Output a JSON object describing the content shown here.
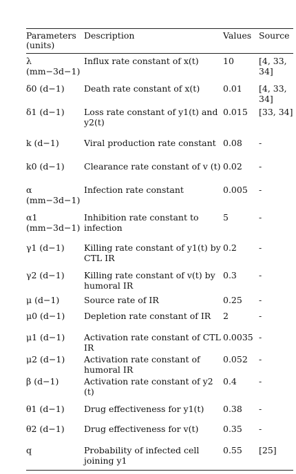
{
  "table": {
    "headers": {
      "param": "Parameters (units)",
      "desc": "Description",
      "values": "Values",
      "source": "Source"
    },
    "rows": [
      {
        "param": "λ (mm−3d−1)",
        "desc": "Influx rate constant of x(t)",
        "value": "10",
        "source": "[4, 33, 34]"
      },
      {
        "param": "δ0 (d−1)",
        "desc": "Death rate constant of x(t)",
        "value": "0.01",
        "source": "[4, 33, 34]"
      },
      {
        "param": "δ1 (d−1)",
        "desc": "Loss rate constant of y1(t) and y2(t)",
        "value": "0.015",
        "source": "[33, 34]"
      },
      {
        "param": "k (d−1)",
        "desc": "Viral production rate constant",
        "value": "0.08",
        "source": "-"
      },
      {
        "param": "k0 (d−1)",
        "desc": "Clearance rate constant of v (t)",
        "value": "0.02",
        "source": "-"
      },
      {
        "param": "α (mm−3d−1)",
        "desc": "Infection rate constant",
        "value": "0.005",
        "source": "-"
      },
      {
        "param": "α1 (mm−3d−1)",
        "desc": "Inhibition rate constant to infection",
        "value": "5",
        "source": "-"
      },
      {
        "param": "γ1 (d−1)",
        "desc": "Killing rate constant of y1(t) by CTL IR",
        "value": "0.2",
        "source": "-"
      },
      {
        "param": "γ2 (d−1)",
        "desc": "Killing rate constant of v(t) by humoral IR",
        "value": "0.3",
        "source": "-"
      },
      {
        "param": "μ (d−1)",
        "desc": "Source rate of IR",
        "value": "0.25",
        "source": "-"
      },
      {
        "param": "μ0 (d−1)",
        "desc": "Depletion rate constant of IR",
        "value": "2",
        "source": "-"
      },
      {
        "param": "μ1 (d−1)",
        "desc": "Activation rate constant of CTL IR",
        "value": "0.0035",
        "source": "-"
      },
      {
        "param": "μ2 (d−1)",
        "desc": "Activation rate constant of humoral IR",
        "value": "0.052",
        "source": "-"
      },
      {
        "param": "β (d−1)",
        "desc": "Activation rate constant of y2 (t)",
        "value": "0.4",
        "source": "-"
      },
      {
        "param": "θ1 (d−1)",
        "desc": "Drug effectiveness for y1(t)",
        "value": "0.38",
        "source": "-"
      },
      {
        "param": "θ2 (d−1)",
        "desc": "Drug effectiveness for v(t)",
        "value": "0.35",
        "source": "-"
      },
      {
        "param": "q",
        "desc": "Probability of infected cell joining y1",
        "value": "0.55",
        "source": "[25]"
      }
    ]
  }
}
